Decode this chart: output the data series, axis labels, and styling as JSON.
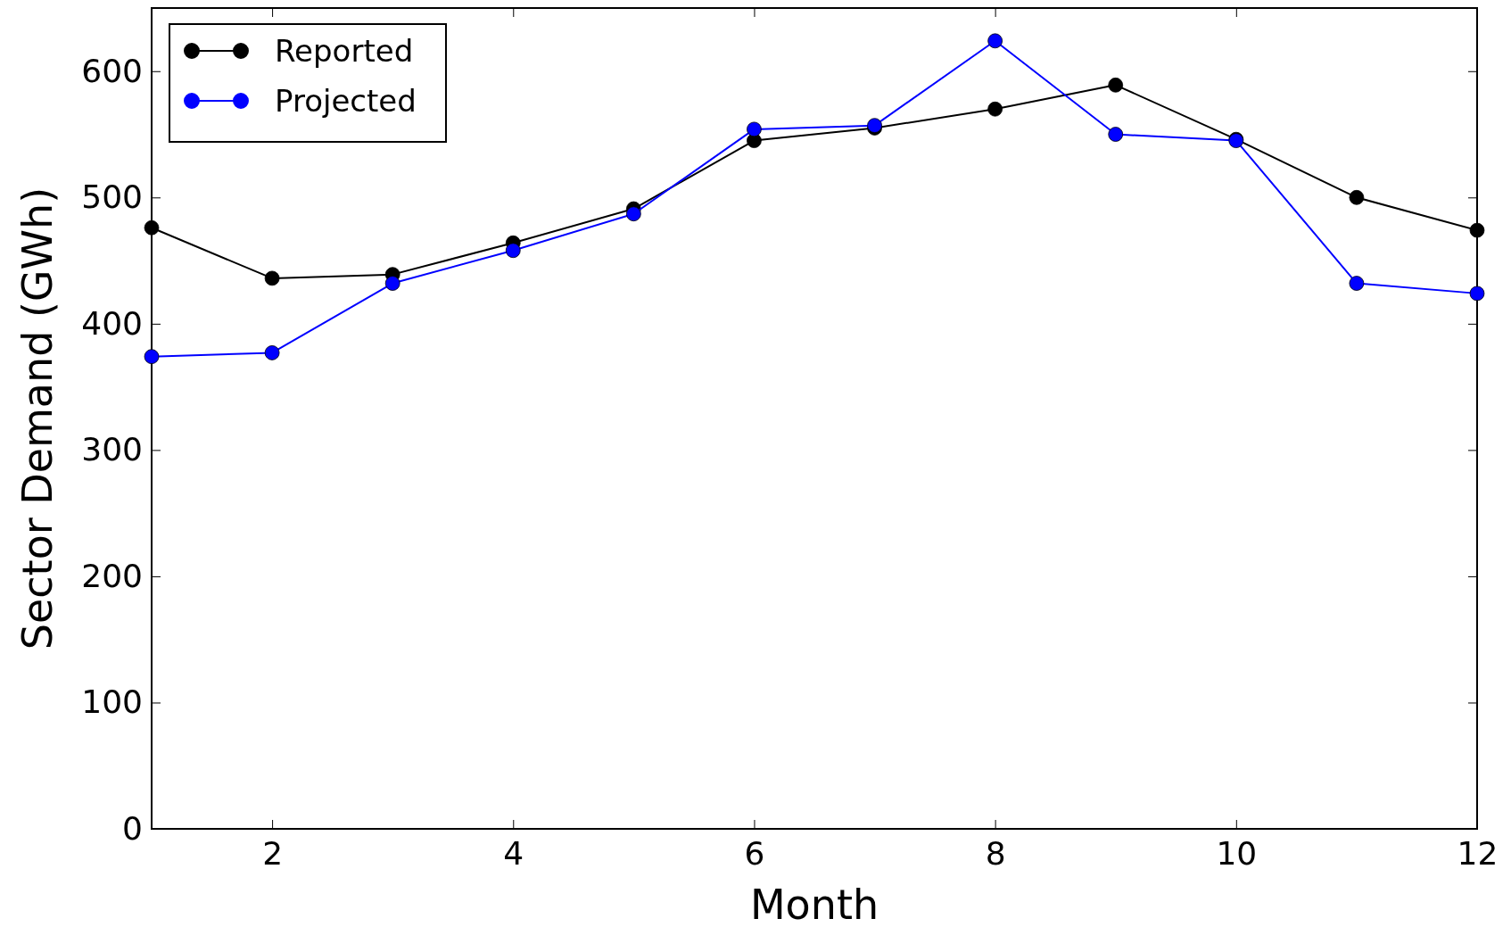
{
  "chart_data": {
    "type": "line",
    "xlabel": "Month",
    "ylabel": "Sector Demand (GWh)",
    "x": [
      1,
      2,
      3,
      4,
      5,
      6,
      7,
      8,
      9,
      10,
      11,
      12
    ],
    "series": [
      {
        "name": "Reported",
        "color": "#000000",
        "values": [
          476,
          436,
          439,
          464,
          491,
          545,
          555,
          570,
          589,
          546,
          500,
          474
        ]
      },
      {
        "name": "Projected",
        "color": "#0000ff",
        "values": [
          374,
          377,
          432,
          458,
          487,
          554,
          557,
          624,
          550,
          545,
          432,
          424
        ]
      }
    ],
    "xlim": [
      1,
      12
    ],
    "xticks": [
      2,
      4,
      6,
      8,
      10,
      12
    ],
    "ylim": [
      0,
      650
    ],
    "yticks": [
      0,
      100,
      200,
      300,
      400,
      500,
      600
    ],
    "grid": false,
    "legend": "top left",
    "marker": "circle",
    "line_style": "solid"
  }
}
